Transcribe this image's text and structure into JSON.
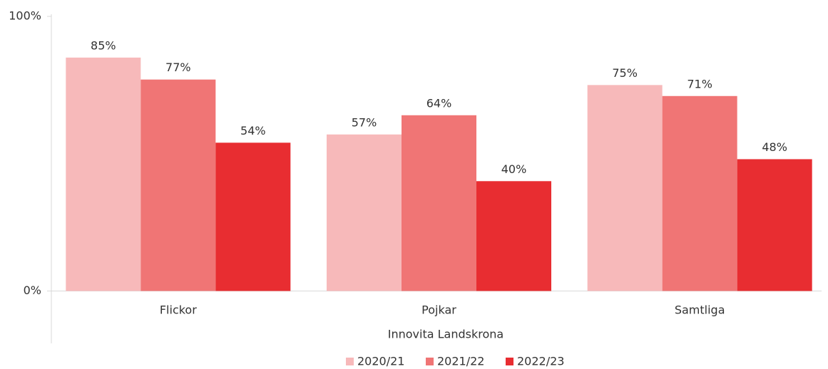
{
  "chart_data": {
    "type": "bar",
    "categories": [
      "Flickor",
      "Pojkar",
      "Samtliga"
    ],
    "x_label": "Innovita Landskrona",
    "series": [
      {
        "name": "2020/21",
        "color": "#f7b9ba",
        "values": [
          85,
          57,
          75
        ],
        "value_labels": [
          "85%",
          "57%",
          "75%"
        ]
      },
      {
        "name": "2021/22",
        "color": "#f07575",
        "values": [
          77,
          64,
          71
        ],
        "value_labels": [
          "77%",
          "64%",
          "71%"
        ]
      },
      {
        "name": "2022/23",
        "color": "#e82d31",
        "values": [
          54,
          40,
          48
        ],
        "value_labels": [
          "54%",
          "40%",
          "48%"
        ]
      }
    ],
    "ylim": [
      0,
      100
    ],
    "yticks": [
      {
        "value": 0,
        "label": "0%"
      },
      {
        "value": 100,
        "label": "100%"
      }
    ],
    "legend": "bottom"
  }
}
